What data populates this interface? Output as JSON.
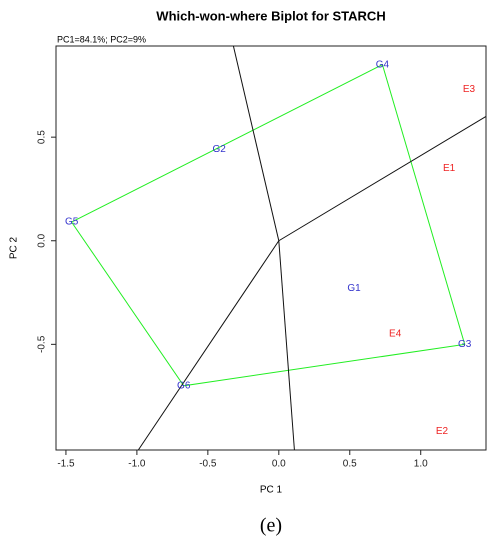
{
  "chart_data": {
    "type": "biplot",
    "title": "Which-won-where Biplot for STARCH",
    "subtitle": "PC1=84.1%; PC2=9%",
    "x_label": "PC 1",
    "y_label": "PC 2",
    "caption": "(e)",
    "xlim": [
      -1.57,
      1.46
    ],
    "ylim": [
      -1.01,
      0.94
    ],
    "xticks": [
      -1.5,
      {
        "value": -1.0,
        "label": "-1.0"
      },
      -0.5,
      {
        "value": 0.0,
        "label": "0.0"
      },
      0.5,
      {
        "value": 1.0,
        "label": "1.0"
      }
    ],
    "yticks": [
      -0.5,
      {
        "value": 0.0,
        "label": "0.0"
      },
      0.5
    ],
    "genotypes": {
      "color": "#3333cc",
      "labels": [
        "G4",
        "G2",
        "G5",
        "G1",
        "G3",
        "G6"
      ],
      "x": [
        0.73,
        -0.42,
        -1.46,
        0.53,
        1.31,
        -0.67
      ],
      "y": [
        0.85,
        0.44,
        0.09,
        -0.23,
        -0.5,
        -0.7
      ]
    },
    "environments": {
      "color": "#ee2222",
      "labels": [
        "E3",
        "E1",
        "E4",
        "E2"
      ],
      "x": [
        1.34,
        1.2,
        0.82,
        1.15
      ],
      "y": [
        0.73,
        0.35,
        -0.45,
        -0.92
      ]
    },
    "hull_color": "#22ee22",
    "sector_lines": {
      "color": "#111111",
      "x": [
        -0.32,
        1.46,
        -0.99,
        0.11
      ],
      "y": [
        0.94,
        0.6,
        -1.01,
        -1.01
      ]
    }
  }
}
